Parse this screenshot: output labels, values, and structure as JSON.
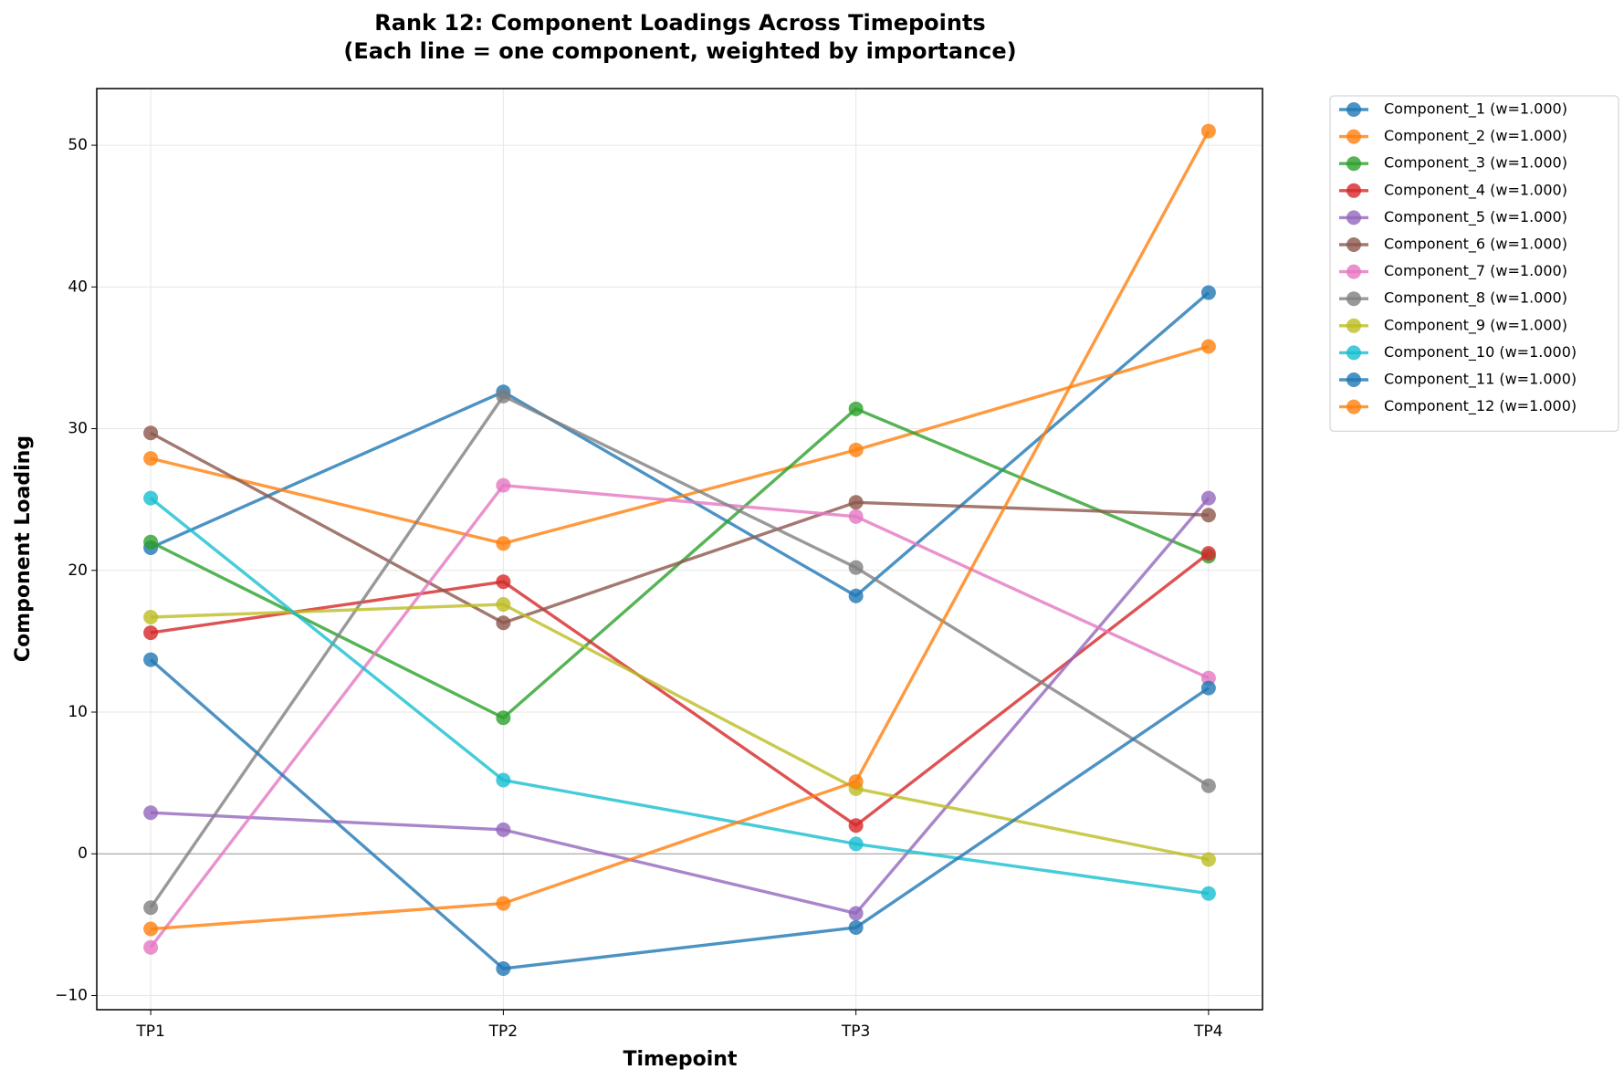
{
  "chart_data": {
    "type": "line",
    "title": "Rank 12: Component Loadings Across Timepoints",
    "subtitle": "(Each line = one component, weighted by importance)",
    "x_label": "Timepoint",
    "y_label": "Component Loading",
    "categories": [
      "TP1",
      "TP2",
      "TP3",
      "TP4"
    ],
    "ylim": [
      -11,
      54
    ],
    "yticks": [
      {
        "value": -10,
        "label": "−10"
      },
      0,
      10,
      20,
      30,
      40,
      50
    ],
    "grid": true,
    "legend": "outside-right",
    "series": [
      {
        "name": "Component_1 (w=1.000)",
        "color": "#1f77b4",
        "values": [
          21.6,
          32.6,
          18.2,
          39.6
        ]
      },
      {
        "name": "Component_2 (w=1.000)",
        "color": "#ff7f0e",
        "values": [
          27.9,
          21.9,
          28.5,
          35.8
        ]
      },
      {
        "name": "Component_3 (w=1.000)",
        "color": "#2ca02c",
        "values": [
          22.0,
          9.6,
          31.4,
          21.0
        ]
      },
      {
        "name": "Component_4 (w=1.000)",
        "color": "#d62728",
        "values": [
          15.6,
          19.2,
          2.0,
          21.2
        ]
      },
      {
        "name": "Component_5 (w=1.000)",
        "color": "#9467bd",
        "values": [
          2.9,
          1.7,
          -4.2,
          25.1
        ]
      },
      {
        "name": "Component_6 (w=1.000)",
        "color": "#8c564b",
        "values": [
          29.7,
          16.3,
          24.8,
          23.9
        ]
      },
      {
        "name": "Component_7 (w=1.000)",
        "color": "#e377c2",
        "values": [
          -6.6,
          26.0,
          23.8,
          12.4
        ]
      },
      {
        "name": "Component_8 (w=1.000)",
        "color": "#7f7f7f",
        "values": [
          -3.8,
          32.3,
          20.2,
          4.8
        ]
      },
      {
        "name": "Component_9 (w=1.000)",
        "color": "#bcbd22",
        "values": [
          16.7,
          17.6,
          4.6,
          -0.4
        ]
      },
      {
        "name": "Component_10 (w=1.000)",
        "color": "#17becf",
        "values": [
          25.1,
          5.2,
          0.7,
          -2.8
        ]
      },
      {
        "name": "Component_11 (w=1.000)",
        "color": "#1f77b4",
        "values": [
          13.7,
          -8.1,
          -5.2,
          11.7
        ]
      },
      {
        "name": "Component_12 (w=1.000)",
        "color": "#ff7f0e",
        "values": [
          -5.3,
          -3.5,
          5.1,
          51.0
        ]
      }
    ]
  }
}
